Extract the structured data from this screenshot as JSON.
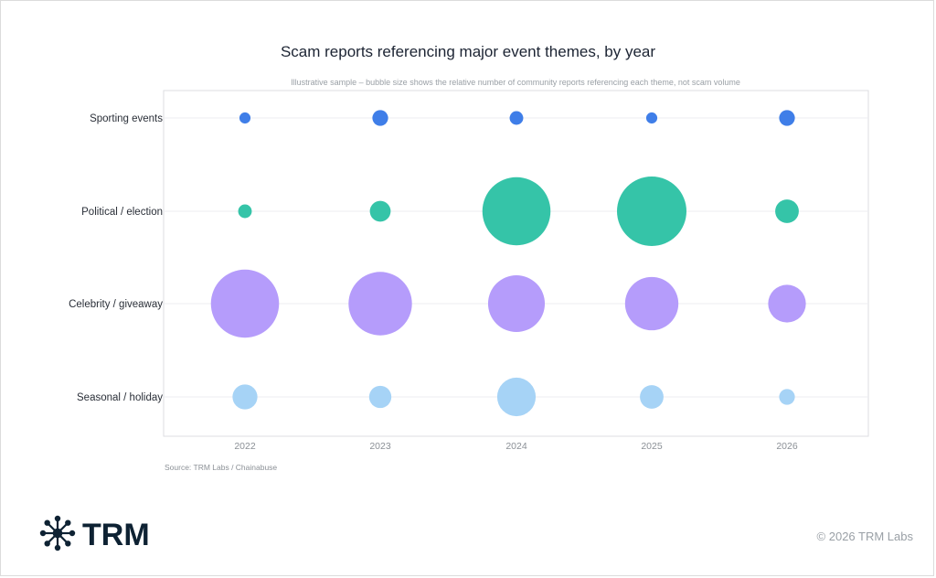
{
  "chart_data": {
    "type": "scatter",
    "title": "Scam reports referencing major event themes, by year",
    "subtitle": "Illustrative sample – bubble size shows the relative number of community reports referencing each theme, not scam volume",
    "x": [
      "2022",
      "2023",
      "2024",
      "2025",
      "2026"
    ],
    "categories": [
      "Sporting events",
      "Political / election",
      "Celebrity / giveaway",
      "Seasonal / holiday"
    ],
    "series": [
      {
        "name": "Sporting events",
        "color": "#3f7ee8",
        "values": [
          2,
          4,
          3,
          2,
          4
        ]
      },
      {
        "name": "Political / election",
        "color": "#35c4a8",
        "values": [
          3,
          7,
          75,
          78,
          9
        ]
      },
      {
        "name": "Celebrity / giveaway",
        "color": "#b59cfb",
        "values": [
          75,
          65,
          52,
          46,
          23
        ]
      },
      {
        "name": "Seasonal / holiday",
        "color": "#a6d3f6",
        "values": [
          10,
          8,
          24,
          9,
          4
        ]
      }
    ],
    "grid": true,
    "legend": "none"
  },
  "source": "Source: TRM Labs / Chainabuse",
  "brand": {
    "name": "TRM",
    "icon": "network-node-icon",
    "color": "#0e2233"
  },
  "copyright": "© 2026 TRM Labs"
}
